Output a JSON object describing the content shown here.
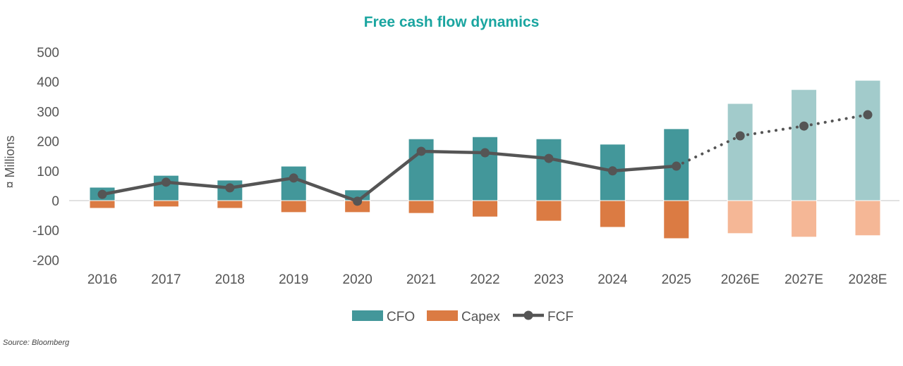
{
  "chart_data": {
    "type": "bar",
    "title": "Free cash flow dynamics",
    "ylabel": "¤ Millions",
    "xlabel": "",
    "ylim": [
      -200,
      500
    ],
    "yticks": [
      500,
      400,
      300,
      200,
      100,
      0,
      -100,
      -200
    ],
    "grid": false,
    "legend": "bottom",
    "categories": [
      "2016",
      "2017",
      "2018",
      "2019",
      "2020",
      "2021",
      "2022",
      "2023",
      "2024",
      "2025",
      "2026E",
      "2027E",
      "2028E"
    ],
    "estimate_from_index": 10,
    "series": [
      {
        "name": "CFO",
        "kind": "bar",
        "color": "#43979a",
        "estimate_color": "#a2cbcb",
        "values": [
          45,
          85,
          69,
          116,
          36,
          208,
          215,
          208,
          190,
          242,
          327,
          374,
          405
        ]
      },
      {
        "name": "Capex",
        "kind": "bar",
        "color": "#db7b43",
        "estimate_color": "#f5b796",
        "values": [
          -26,
          -21,
          -26,
          -40,
          -40,
          -43,
          -55,
          -69,
          -90,
          -128,
          -111,
          -123,
          -118
        ]
      },
      {
        "name": "FCF",
        "kind": "line",
        "color": "#555555",
        "values": [
          21,
          62,
          43,
          76,
          -2,
          166,
          161,
          142,
          100,
          116,
          218,
          251,
          289
        ]
      }
    ]
  },
  "source": "Source: Bloomberg"
}
